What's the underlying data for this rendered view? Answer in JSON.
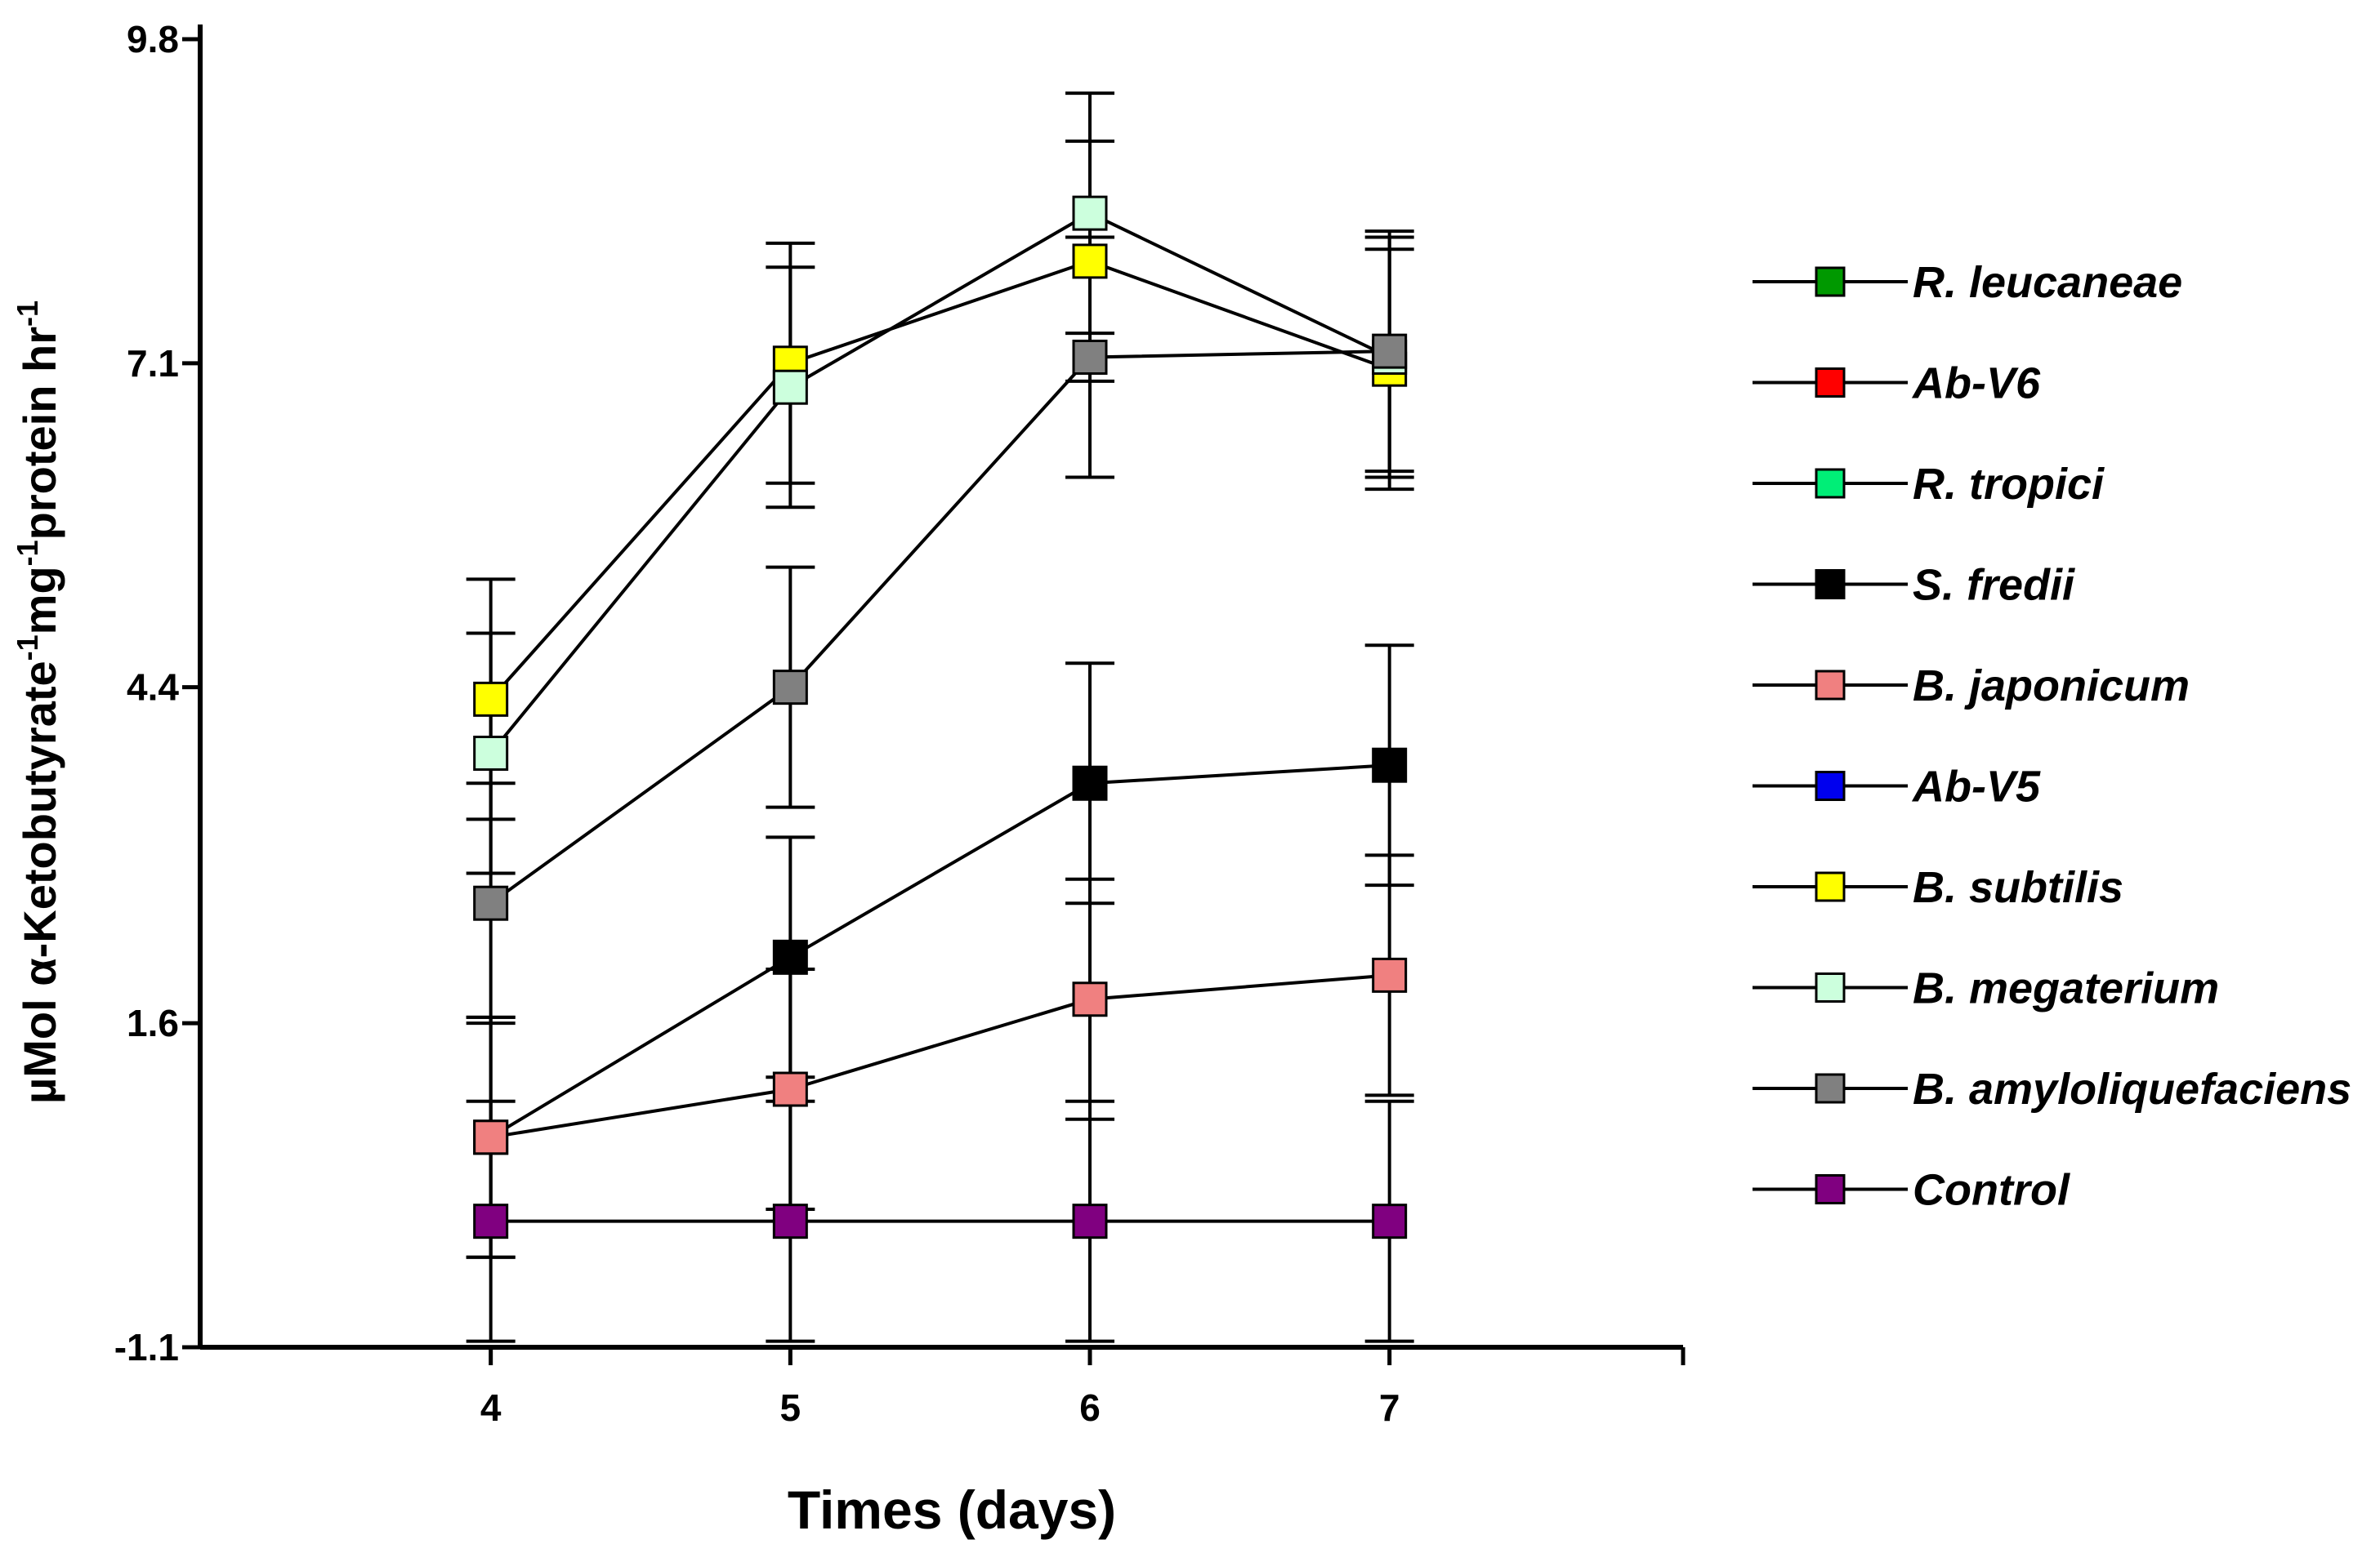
{
  "chart_data": {
    "type": "line",
    "title": "",
    "xlabel": "Times (days)",
    "ylabel_parts": [
      "µMol α-Ketobutyrate",
      "-1",
      "mg",
      "-1",
      "protein hr",
      "-1"
    ],
    "x": [
      4,
      5,
      6,
      7
    ],
    "x_tick_labels": [
      "4",
      "5",
      "6",
      "7"
    ],
    "y_ticks": [
      -1.1,
      1.6,
      4.4,
      7.1,
      9.8
    ],
    "y_tick_labels": [
      "-1.1",
      "1.6",
      "4.4",
      "7.1",
      "9.8"
    ],
    "xlim": [
      3.03,
      7.98
    ],
    "ylim": [
      -1.1,
      9.8
    ],
    "legend_position": "right",
    "series": [
      {
        "name": "R. leucaneae",
        "color": "#009900",
        "values": [
          null,
          null,
          null,
          null
        ],
        "errors": [
          null,
          null,
          null,
          null
        ]
      },
      {
        "name": "Ab-V6",
        "color": "#ff0000",
        "values": [
          null,
          null,
          null,
          null
        ],
        "errors": [
          null,
          null,
          null,
          null
        ]
      },
      {
        "name": "R. tropici",
        "color": "#00ee77",
        "values": [
          null,
          null,
          null,
          null
        ],
        "errors": [
          null,
          null,
          null,
          null
        ]
      },
      {
        "name": "S. fredii",
        "color": "#000000",
        "values": [
          0.65,
          2.15,
          3.6,
          3.75
        ],
        "errors": [
          1.0,
          1.0,
          1.0,
          1.0
        ]
      },
      {
        "name": "B. japonicum",
        "color": "#f08080",
        "values": [
          0.65,
          1.05,
          1.8,
          2.0
        ],
        "errors": [
          1.0,
          1.0,
          1.0,
          1.0
        ]
      },
      {
        "name": "Ab-V5",
        "color": "#0000ee",
        "values": [
          null,
          null,
          null,
          null
        ],
        "errors": [
          null,
          null,
          null,
          null
        ]
      },
      {
        "name": "B. subtilis",
        "color": "#ffff00",
        "values": [
          4.3,
          7.1,
          7.95,
          7.05
        ],
        "errors": [
          1.0,
          1.0,
          1.0,
          1.0
        ]
      },
      {
        "name": "B. megaterium",
        "color": "#ccffdd",
        "values": [
          3.85,
          6.9,
          8.35,
          7.15
        ],
        "errors": [
          1.0,
          1.0,
          1.0,
          1.0
        ]
      },
      {
        "name": "B. amyloliquefaciens",
        "color": "#808080",
        "values": [
          2.6,
          4.4,
          7.15,
          7.2
        ],
        "errors": [
          1.0,
          1.0,
          1.0,
          1.0
        ]
      },
      {
        "name": "Control",
        "color": "#800080",
        "values": [
          -0.05,
          -0.05,
          -0.05,
          -0.05
        ],
        "errors": [
          1.0,
          1.0,
          1.0,
          1.0
        ]
      }
    ]
  }
}
